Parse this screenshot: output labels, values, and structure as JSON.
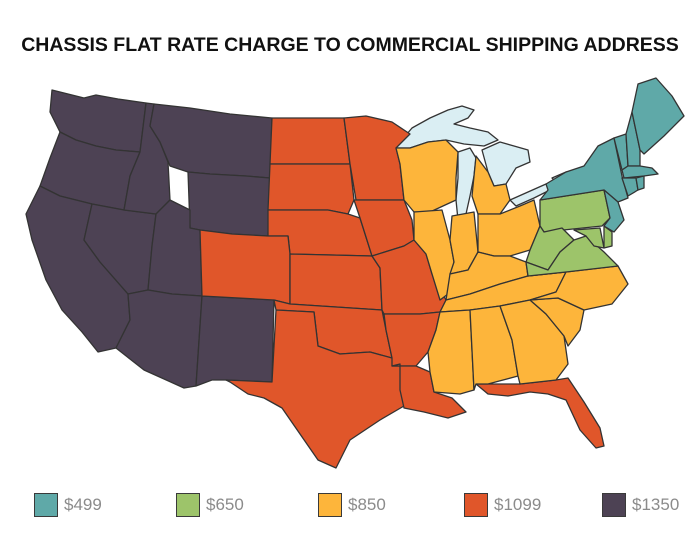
{
  "title": "CHASSIS FLAT RATE CHARGE TO COMMERCIAL SHIPPING ADDRESS",
  "colors": {
    "tier_499": "#5fa9a8",
    "tier_650": "#9dc46a",
    "tier_850": "#fdb53b",
    "tier_1099": "#e0562a",
    "tier_1350": "#4d4254",
    "water": "#daeef3",
    "border": "#333333"
  },
  "legend": [
    {
      "label": "$499",
      "color": "#5fa9a8"
    },
    {
      "label": "$650",
      "color": "#9dc46a"
    },
    {
      "label": "$850",
      "color": "#fdb53b"
    },
    {
      "label": "$1099",
      "color": "#e0562a"
    },
    {
      "label": "$1350",
      "color": "#4d4254"
    }
  ]
}
